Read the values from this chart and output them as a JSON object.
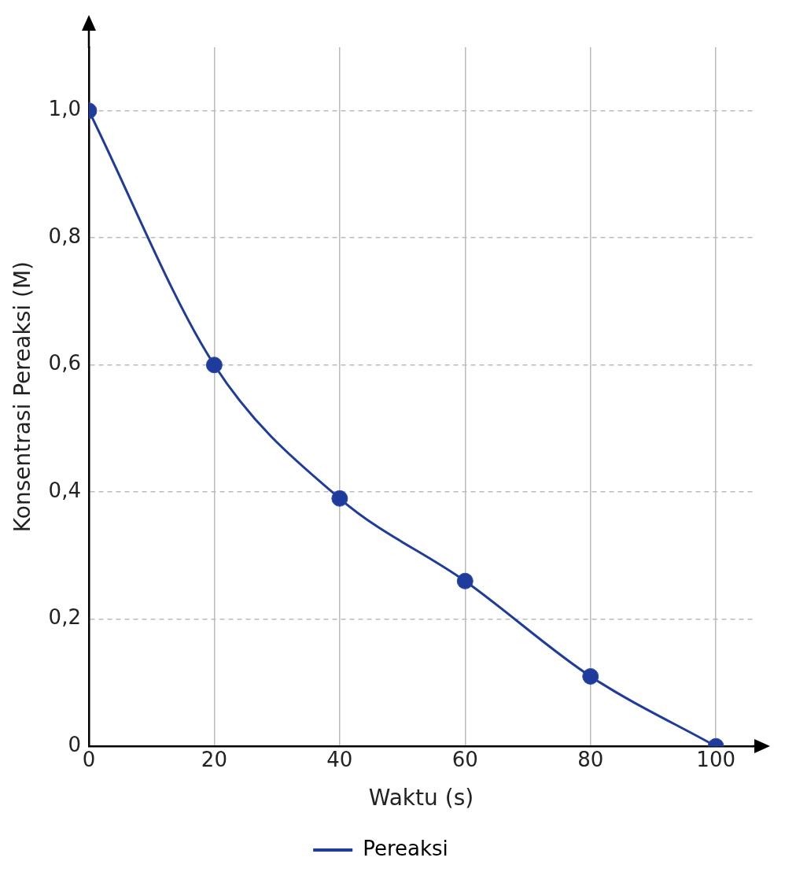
{
  "chart_data": {
    "type": "line",
    "xlabel": "Waktu (s)",
    "ylabel": "Konsentrasi Pereaksi (M)",
    "x": [
      0,
      20,
      40,
      60,
      80,
      100
    ],
    "series": [
      {
        "name": "Pereaksi",
        "color": "#1f3c9c",
        "values": [
          1.0,
          0.6,
          0.39,
          0.26,
          0.11,
          0
        ]
      }
    ],
    "xlim": [
      0,
      106
    ],
    "xticks": [
      0,
      20,
      40,
      60,
      80,
      100
    ],
    "ylim": [
      0,
      1.1
    ],
    "yticks": [
      0,
      {
        "value": 0.2,
        "label": "0,2"
      },
      {
        "value": 0.4,
        "label": "0,4"
      },
      {
        "value": 0.6,
        "label": "0,6"
      },
      {
        "value": 0.8,
        "label": "0,8"
      },
      {
        "value": 1,
        "label": "1,0"
      }
    ],
    "grid": true,
    "legend": "bottom",
    "marker": "circle",
    "line_style": "solid"
  }
}
